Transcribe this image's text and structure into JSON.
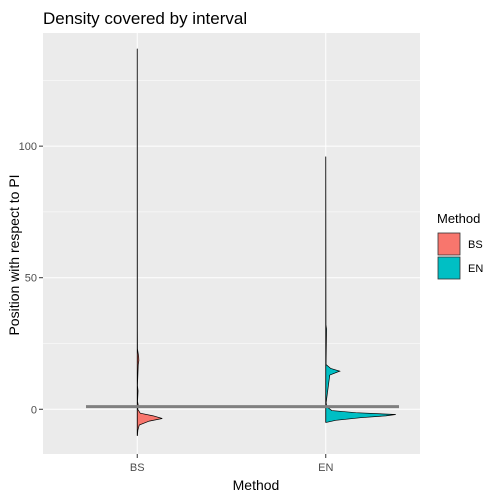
{
  "chart_data": {
    "type": "violin",
    "title": "Density covered by interval",
    "xlabel": "Method",
    "ylabel": "Position with respect to PI",
    "categories": [
      "BS",
      "EN"
    ],
    "ylim": [
      -17,
      143
    ],
    "yticks": [
      0,
      50,
      100
    ],
    "grid": true,
    "legend": {
      "title": "Method",
      "placement": "right",
      "entries": [
        {
          "label": "BS",
          "color": "#F8766D"
        },
        {
          "label": "EN",
          "color": "#00BFC4"
        }
      ]
    },
    "reference_line": {
      "y": 1,
      "color": "#808080"
    },
    "series": [
      {
        "category": "BS",
        "color": "#F8766D",
        "range": [
          -10,
          137
        ],
        "density_profile": [
          {
            "y": -10,
            "w": 0.2
          },
          {
            "y": -8,
            "w": 0.6
          },
          {
            "y": -6,
            "w": 2
          },
          {
            "y": -4.5,
            "w": 12
          },
          {
            "y": -3.5,
            "w": 25
          },
          {
            "y": -2.5,
            "w": 16
          },
          {
            "y": -1.5,
            "w": 3
          },
          {
            "y": 0,
            "w": 0.5
          },
          {
            "y": 1.5,
            "w": 1
          },
          {
            "y": 3,
            "w": 0.3
          },
          {
            "y": 7,
            "w": 0.8
          },
          {
            "y": 9,
            "w": 0.2
          },
          {
            "y": 17,
            "w": 1
          },
          {
            "y": 18.5,
            "w": 1.6
          },
          {
            "y": 20,
            "w": 1.4
          },
          {
            "y": 21.5,
            "w": 0.8
          },
          {
            "y": 23,
            "w": 0.2
          },
          {
            "y": 30,
            "w": 0.1
          },
          {
            "y": 137,
            "w": 0
          }
        ]
      },
      {
        "category": "EN",
        "color": "#00BFC4",
        "range": [
          -5,
          96
        ],
        "density_profile": [
          {
            "y": -5,
            "w": 0.5
          },
          {
            "y": -4.2,
            "w": 10
          },
          {
            "y": -3.2,
            "w": 35
          },
          {
            "y": -2.5,
            "w": 60
          },
          {
            "y": -2,
            "w": 70
          },
          {
            "y": -1.3,
            "w": 30
          },
          {
            "y": -0.5,
            "w": 6
          },
          {
            "y": 1,
            "w": 1
          },
          {
            "y": 2.5,
            "w": 0.4
          },
          {
            "y": 13,
            "w": 4
          },
          {
            "y": 14.5,
            "w": 14
          },
          {
            "y": 15.5,
            "w": 5
          },
          {
            "y": 17,
            "w": 0.3
          },
          {
            "y": 30.5,
            "w": 0.8
          },
          {
            "y": 32,
            "w": 0.2
          },
          {
            "y": 96,
            "w": 0
          }
        ]
      }
    ]
  }
}
